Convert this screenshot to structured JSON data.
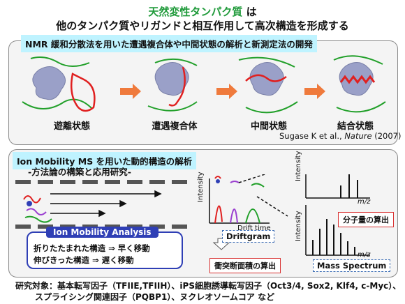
{
  "title": {
    "highlight": "天然変性タンパク質",
    "suffix": " は",
    "line2": "他のタンパク質やリガンドと相互作用して高次構造を形成する"
  },
  "nmr_panel": {
    "header": "NMR 緩和分散法を用いた遭遇複合体や中間状態の解析と新測定法の開発",
    "stages": [
      "遊離状態",
      "遭遇複合体",
      "中間状態",
      "結合状態"
    ],
    "citation_prefix": "Sugase K et al., ",
    "citation_journal": "Nature",
    "citation_suffix": " (2007)"
  },
  "ims_panel": {
    "header": "Ion Mobility MS を用いた動的構造の解析",
    "subheader": "-方法論の構築と応用研究-",
    "analysis_title": "Ion Mobility Analysis",
    "analysis_line1": "折りたたまれた構造  ⇒  早く移動",
    "analysis_line2": "伸びきった構造  ⇒  遅く移動",
    "driftgram_ylabel": "Intensity",
    "driftgram_xlabel": "Drift time",
    "driftgram_label": "Driftgram",
    "collision_label": "衝突断面積の算出",
    "spectrum_ylabel": "Intensity",
    "spectrum_xlabel": "m/z",
    "mass_label": "分子量の算出",
    "spectrum_label": "Mass Spectrum"
  },
  "footer": {
    "line1": "研究対象：基本転写因子（TFIIE,TFIIH）、iPS細胞誘導転写因子（Oct3/4, Sox2, Klf4, c-Myc）、",
    "line2": "スプライシング関連因子（PQBP1）、ヌクレオソームコア など"
  },
  "colors": {
    "accent_green": "#1f9a3a",
    "header_bg": "#bff3ff",
    "arrow_orange": "#ef7a3c",
    "protein": "#9aa0c8",
    "chain_red": "#e02020",
    "chain_green": "#22a02a",
    "analysis_blue": "#2f3fb5"
  }
}
